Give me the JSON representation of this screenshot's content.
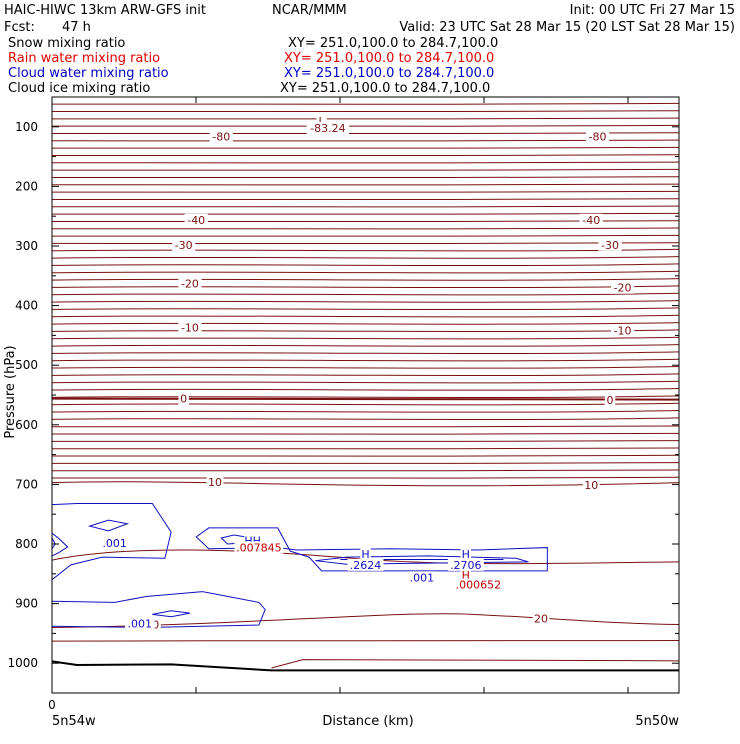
{
  "header": {
    "model": "HAIC-HIWC 13km ARW-GFS init",
    "org": "NCAR/MMM",
    "init": "Init: 00 UTC Fri 27 Mar 15",
    "fcst_label": "Fcst:",
    "fcst_value": "47 h",
    "valid": "Valid: 23 UTC Sat 28 Mar 15 (20 LST Sat 28 Mar 15)"
  },
  "fields": [
    {
      "name": "Snow mixing ratio",
      "xy": "XY= 251.0,100.0 to 284.7,100.0",
      "color": "#000000"
    },
    {
      "name": "Rain water mixing ratio",
      "xy": "XY= 251.0,100.0 to 284.7,100.0",
      "color": "#e00000"
    },
    {
      "name": "Cloud water mixing ratio",
      "xy": "XY= 251.0,100.0 to 284.7,100.0",
      "color": "#0000c8"
    },
    {
      "name": "Cloud ice mixing ratio",
      "xy": "XY= 251.0,100.0 to 284.7,100.0",
      "color": "#000000"
    }
  ],
  "colors": {
    "temperature": "#7a1010",
    "cloud_water": "#1010c0",
    "rain": "#c00000",
    "ground": "#000000"
  },
  "chart_data": {
    "type": "contour",
    "xlabel": "Distance (km)",
    "ylabel": "Pressure (hPa)",
    "x_tick_labels": [
      "0"
    ],
    "x_left_label": "5n54w",
    "x_right_label": "5n50w",
    "y_ticks": [
      100,
      200,
      300,
      400,
      500,
      600,
      700,
      800,
      900,
      1000
    ],
    "ylim": [
      1050,
      50
    ],
    "temperature_isotherm_labels": [
      "-80",
      "-83.24",
      "L",
      "-40",
      "-30",
      "-20",
      "-10",
      "0",
      "10",
      "20"
    ],
    "temperature_label_points": [
      {
        "text": "-80",
        "x": 0.27,
        "p": 116
      },
      {
        "text": "-80",
        "x": 0.87,
        "p": 116
      },
      {
        "text": "L",
        "x": 0.43,
        "p": 90
      },
      {
        "text": "-83.24",
        "x": 0.44,
        "p": 102
      },
      {
        "text": "-40",
        "x": 0.23,
        "p": 256
      },
      {
        "text": "-40",
        "x": 0.86,
        "p": 256
      },
      {
        "text": "-30",
        "x": 0.21,
        "p": 298
      },
      {
        "text": "-30",
        "x": 0.89,
        "p": 298
      },
      {
        "text": "-20",
        "x": 0.22,
        "p": 363
      },
      {
        "text": "-20",
        "x": 0.91,
        "p": 370
      },
      {
        "text": "-10",
        "x": 0.22,
        "p": 437
      },
      {
        "text": "-10",
        "x": 0.91,
        "p": 442
      },
      {
        "text": "0",
        "x": 0.21,
        "p": 556
      },
      {
        "text": "0",
        "x": 0.89,
        "p": 558
      },
      {
        "text": "10",
        "x": 0.26,
        "p": 696
      },
      {
        "text": "10",
        "x": 0.86,
        "p": 701
      },
      {
        "text": "20",
        "x": 0.16,
        "p": 935
      },
      {
        "text": "20",
        "x": 0.78,
        "p": 925
      }
    ],
    "cloud_water_labels": [
      {
        "text": ".001",
        "x": 0.1,
        "p": 798
      },
      {
        "text": ".001",
        "x": 0.59,
        "p": 856
      },
      {
        "text": ".001",
        "x": 0.14,
        "p": 933
      },
      {
        "text": "H",
        "x": 0.5,
        "p": 817
      },
      {
        "text": ".2624",
        "x": 0.5,
        "p": 835
      },
      {
        "text": "H",
        "x": 0.66,
        "p": 817
      },
      {
        "text": ".2706",
        "x": 0.66,
        "p": 835
      },
      {
        "text": "HH",
        "x": 0.32,
        "p": 794
      }
    ],
    "rain_labels": [
      {
        "text": ".007845",
        "x": 0.33,
        "p": 806
      },
      {
        "text": "H",
        "x": 0.66,
        "p": 852
      },
      {
        "text": ".000652",
        "x": 0.68,
        "p": 868
      }
    ]
  }
}
